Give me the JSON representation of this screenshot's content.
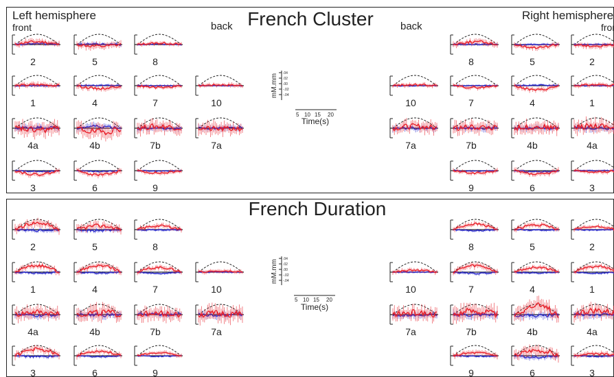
{
  "panels": [
    {
      "title": "French Cluster",
      "left_label": "Left hemisphere",
      "left_sub": "front",
      "left_back": "back",
      "right_label": "Right hemisphere",
      "right_sub": "front",
      "right_back": "back",
      "legend": {
        "ylabel": "mM.mm",
        "yticks": [
          ".04",
          ".02",
          ".00",
          "-.02",
          "-.04"
        ],
        "xticks": [
          "5",
          "10",
          "15",
          "20"
        ],
        "xlabel": "Time(s)"
      }
    },
    {
      "title": "French Duration",
      "legend": {
        "ylabel": "mM.mm",
        "yticks": [
          ".04",
          ".02",
          ".00",
          "-.02",
          "-.04"
        ],
        "xticks": [
          "5",
          "10",
          "15",
          "20"
        ],
        "xlabel": "Time(s)"
      }
    }
  ],
  "chart_data": {
    "type": "line",
    "ylim": [
      -0.04,
      0.04
    ],
    "xlim": [
      0,
      20
    ],
    "series_colors": {
      "oxy": "#e8202a",
      "deoxy": "#2a2acc",
      "model": "#222222"
    },
    "panels": [
      {
        "channels": [
          {
            "label": "2",
            "oxy_amp": 0.006,
            "deoxy_amp": 0.002,
            "noise": 0.006,
            "seed": 11
          },
          {
            "label": "5",
            "oxy_amp": -0.004,
            "deoxy_amp": 0.001,
            "noise": 0.007,
            "seed": 12
          },
          {
            "label": "8",
            "oxy_amp": 0.003,
            "deoxy_amp": 0.001,
            "noise": 0.004,
            "seed": 13
          },
          {
            "label": "1",
            "oxy_amp": 0.002,
            "deoxy_amp": 0.0,
            "noise": 0.005,
            "seed": 14
          },
          {
            "label": "4",
            "oxy_amp": -0.006,
            "deoxy_amp": 0.001,
            "noise": 0.005,
            "seed": 15
          },
          {
            "label": "7",
            "oxy_amp": -0.004,
            "deoxy_amp": 0.0,
            "noise": 0.004,
            "seed": 16
          },
          {
            "label": "10",
            "oxy_amp": 0.002,
            "deoxy_amp": 0.0,
            "noise": 0.004,
            "seed": 17
          },
          {
            "label": "4a",
            "oxy_amp": -0.004,
            "deoxy_amp": 0.002,
            "noise": 0.014,
            "seed": 18
          },
          {
            "label": "4b",
            "oxy_amp": -0.008,
            "deoxy_amp": 0.004,
            "noise": 0.014,
            "seed": 19
          },
          {
            "label": "7b",
            "oxy_amp": 0.004,
            "deoxy_amp": 0.0,
            "noise": 0.012,
            "seed": 20
          },
          {
            "label": "7a",
            "oxy_amp": -0.002,
            "deoxy_amp": 0.0,
            "noise": 0.012,
            "seed": 21
          },
          {
            "label": "3",
            "oxy_amp": -0.008,
            "deoxy_amp": -0.002,
            "noise": 0.005,
            "seed": 22
          },
          {
            "label": "6",
            "oxy_amp": -0.009,
            "deoxy_amp": -0.002,
            "noise": 0.005,
            "seed": 23
          },
          {
            "label": "9",
            "oxy_amp": -0.005,
            "deoxy_amp": -0.001,
            "noise": 0.004,
            "seed": 24
          },
          {
            "label": "8",
            "oxy_amp": 0.006,
            "deoxy_amp": 0.001,
            "noise": 0.006,
            "seed": 25
          },
          {
            "label": "5",
            "oxy_amp": -0.006,
            "deoxy_amp": 0.0,
            "noise": 0.005,
            "seed": 26
          },
          {
            "label": "2",
            "oxy_amp": -0.003,
            "deoxy_amp": 0.0,
            "noise": 0.005,
            "seed": 27
          },
          {
            "label": "10",
            "oxy_amp": 0.002,
            "deoxy_amp": 0.0,
            "noise": 0.004,
            "seed": 28
          },
          {
            "label": "7",
            "oxy_amp": -0.004,
            "deoxy_amp": 0.0,
            "noise": 0.004,
            "seed": 29
          },
          {
            "label": "4",
            "oxy_amp": -0.009,
            "deoxy_amp": 0.001,
            "noise": 0.005,
            "seed": 30
          },
          {
            "label": "1",
            "oxy_amp": 0.002,
            "deoxy_amp": 0.0,
            "noise": 0.004,
            "seed": 31
          },
          {
            "label": "7a",
            "oxy_amp": 0.004,
            "deoxy_amp": 0.0,
            "noise": 0.012,
            "seed": 32
          },
          {
            "label": "7b",
            "oxy_amp": 0.002,
            "deoxy_amp": 0.0,
            "noise": 0.012,
            "seed": 33
          },
          {
            "label": "4b",
            "oxy_amp": 0.003,
            "deoxy_amp": 0.0,
            "noise": 0.012,
            "seed": 34
          },
          {
            "label": "4a",
            "oxy_amp": 0.006,
            "deoxy_amp": 0.0,
            "noise": 0.013,
            "seed": 35
          },
          {
            "label": "9",
            "oxy_amp": -0.005,
            "deoxy_amp": -0.001,
            "noise": 0.004,
            "seed": 36
          },
          {
            "label": "6",
            "oxy_amp": -0.008,
            "deoxy_amp": -0.002,
            "noise": 0.005,
            "seed": 37
          },
          {
            "label": "3",
            "oxy_amp": -0.003,
            "deoxy_amp": 0.0,
            "noise": 0.004,
            "seed": 38
          }
        ]
      },
      {
        "channels": [
          {
            "label": "2",
            "oxy_amp": 0.014,
            "deoxy_amp": -0.002,
            "noise": 0.008,
            "seed": 41
          },
          {
            "label": "5",
            "oxy_amp": 0.008,
            "deoxy_amp": -0.002,
            "noise": 0.008,
            "seed": 42
          },
          {
            "label": "8",
            "oxy_amp": 0.008,
            "deoxy_amp": -0.001,
            "noise": 0.005,
            "seed": 43
          },
          {
            "label": "1",
            "oxy_amp": 0.014,
            "deoxy_amp": -0.002,
            "noise": 0.006,
            "seed": 44
          },
          {
            "label": "4",
            "oxy_amp": 0.014,
            "deoxy_amp": -0.002,
            "noise": 0.006,
            "seed": 45
          },
          {
            "label": "7",
            "oxy_amp": 0.01,
            "deoxy_amp": -0.003,
            "noise": 0.005,
            "seed": 46
          },
          {
            "label": "10",
            "oxy_amp": 0.002,
            "deoxy_amp": 0.0,
            "noise": 0.004,
            "seed": 47
          },
          {
            "label": "4a",
            "oxy_amp": 0.006,
            "deoxy_amp": -0.002,
            "noise": 0.013,
            "seed": 48
          },
          {
            "label": "4b",
            "oxy_amp": 0.004,
            "deoxy_amp": -0.001,
            "noise": 0.015,
            "seed": 49
          },
          {
            "label": "7b",
            "oxy_amp": 0.002,
            "deoxy_amp": 0.0,
            "noise": 0.013,
            "seed": 50
          },
          {
            "label": "7a",
            "oxy_amp": 0.002,
            "deoxy_amp": 0.0,
            "noise": 0.015,
            "seed": 51
          },
          {
            "label": "3",
            "oxy_amp": 0.014,
            "deoxy_amp": -0.002,
            "noise": 0.007,
            "seed": 52
          },
          {
            "label": "6",
            "oxy_amp": 0.01,
            "deoxy_amp": -0.002,
            "noise": 0.005,
            "seed": 53
          },
          {
            "label": "9",
            "oxy_amp": 0.006,
            "deoxy_amp": -0.001,
            "noise": 0.004,
            "seed": 54
          },
          {
            "label": "8",
            "oxy_amp": 0.012,
            "deoxy_amp": -0.002,
            "noise": 0.005,
            "seed": 55
          },
          {
            "label": "5",
            "oxy_amp": 0.01,
            "deoxy_amp": -0.001,
            "noise": 0.005,
            "seed": 56
          },
          {
            "label": "2",
            "oxy_amp": 0.006,
            "deoxy_amp": -0.001,
            "noise": 0.004,
            "seed": 57
          },
          {
            "label": "10",
            "oxy_amp": 0.004,
            "deoxy_amp": 0.0,
            "noise": 0.004,
            "seed": 58
          },
          {
            "label": "7",
            "oxy_amp": 0.014,
            "deoxy_amp": -0.003,
            "noise": 0.006,
            "seed": 59
          },
          {
            "label": "4",
            "oxy_amp": 0.01,
            "deoxy_amp": -0.002,
            "noise": 0.005,
            "seed": 60
          },
          {
            "label": "1",
            "oxy_amp": 0.012,
            "deoxy_amp": -0.002,
            "noise": 0.005,
            "seed": 61
          },
          {
            "label": "7a",
            "oxy_amp": 0.004,
            "deoxy_amp": -0.002,
            "noise": 0.013,
            "seed": 62
          },
          {
            "label": "7b",
            "oxy_amp": 0.008,
            "deoxy_amp": -0.001,
            "noise": 0.016,
            "seed": 63
          },
          {
            "label": "4b",
            "oxy_amp": 0.018,
            "deoxy_amp": -0.002,
            "noise": 0.015,
            "seed": 64
          },
          {
            "label": "4a",
            "oxy_amp": 0.008,
            "deoxy_amp": 0.0,
            "noise": 0.014,
            "seed": 65
          },
          {
            "label": "9",
            "oxy_amp": 0.006,
            "deoxy_amp": -0.001,
            "noise": 0.005,
            "seed": 66
          },
          {
            "label": "6",
            "oxy_amp": 0.012,
            "deoxy_amp": -0.004,
            "noise": 0.01,
            "seed": 67
          },
          {
            "label": "3",
            "oxy_amp": 0.004,
            "deoxy_amp": -0.001,
            "noise": 0.005,
            "seed": 68
          }
        ]
      }
    ]
  }
}
